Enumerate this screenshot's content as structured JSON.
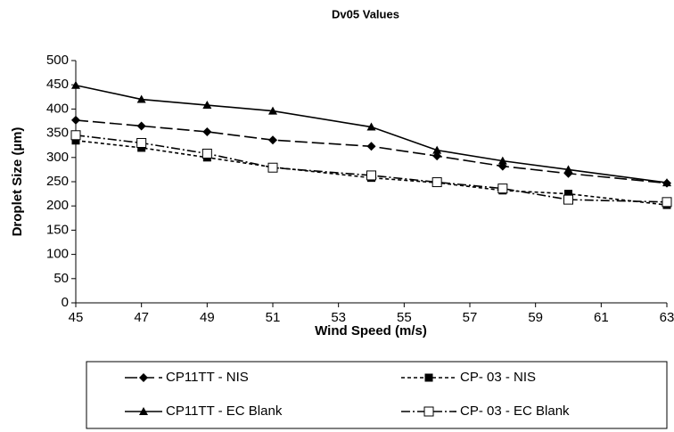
{
  "chart_data": {
    "type": "line",
    "title": "Dv05 Values",
    "x_label": "Wind Speed (m/s)",
    "y_label": "Droplet Size (µm)",
    "x": [
      45,
      47,
      49,
      51,
      54,
      56,
      58,
      60,
      63
    ],
    "series": [
      {
        "name": "CP11TT - NIS",
        "color": "#000000",
        "marker": "diamond",
        "line_style": "long-dash",
        "values": [
          377,
          365,
          353,
          336,
          323,
          303,
          282,
          267,
          247
        ]
      },
      {
        "name": "CP- 03 - NIS",
        "color": "#000000",
        "marker": "square",
        "line_style": "short-dash",
        "values": [
          335,
          320,
          300,
          280,
          258,
          248,
          232,
          225,
          202
        ]
      },
      {
        "name": "CP11TT - EC Blank",
        "color": "#000000",
        "marker": "triangle",
        "line_style": "solid",
        "values": [
          449,
          420,
          408,
          396,
          363,
          315,
          293,
          275,
          248
        ]
      },
      {
        "name": "CP- 03 - EC Blank",
        "color": "#000000",
        "marker": "open-square",
        "line_style": "dash-dot",
        "values": [
          346,
          330,
          308,
          279,
          263,
          249,
          236,
          213,
          208
        ]
      }
    ],
    "xlim": [
      45,
      63
    ],
    "xticks": [
      45,
      47,
      49,
      51,
      53,
      55,
      57,
      59,
      61,
      63
    ],
    "ylim": [
      0,
      500
    ],
    "yticks": [
      0,
      50,
      100,
      150,
      200,
      250,
      300,
      350,
      400,
      450,
      500
    ],
    "grid": false
  }
}
